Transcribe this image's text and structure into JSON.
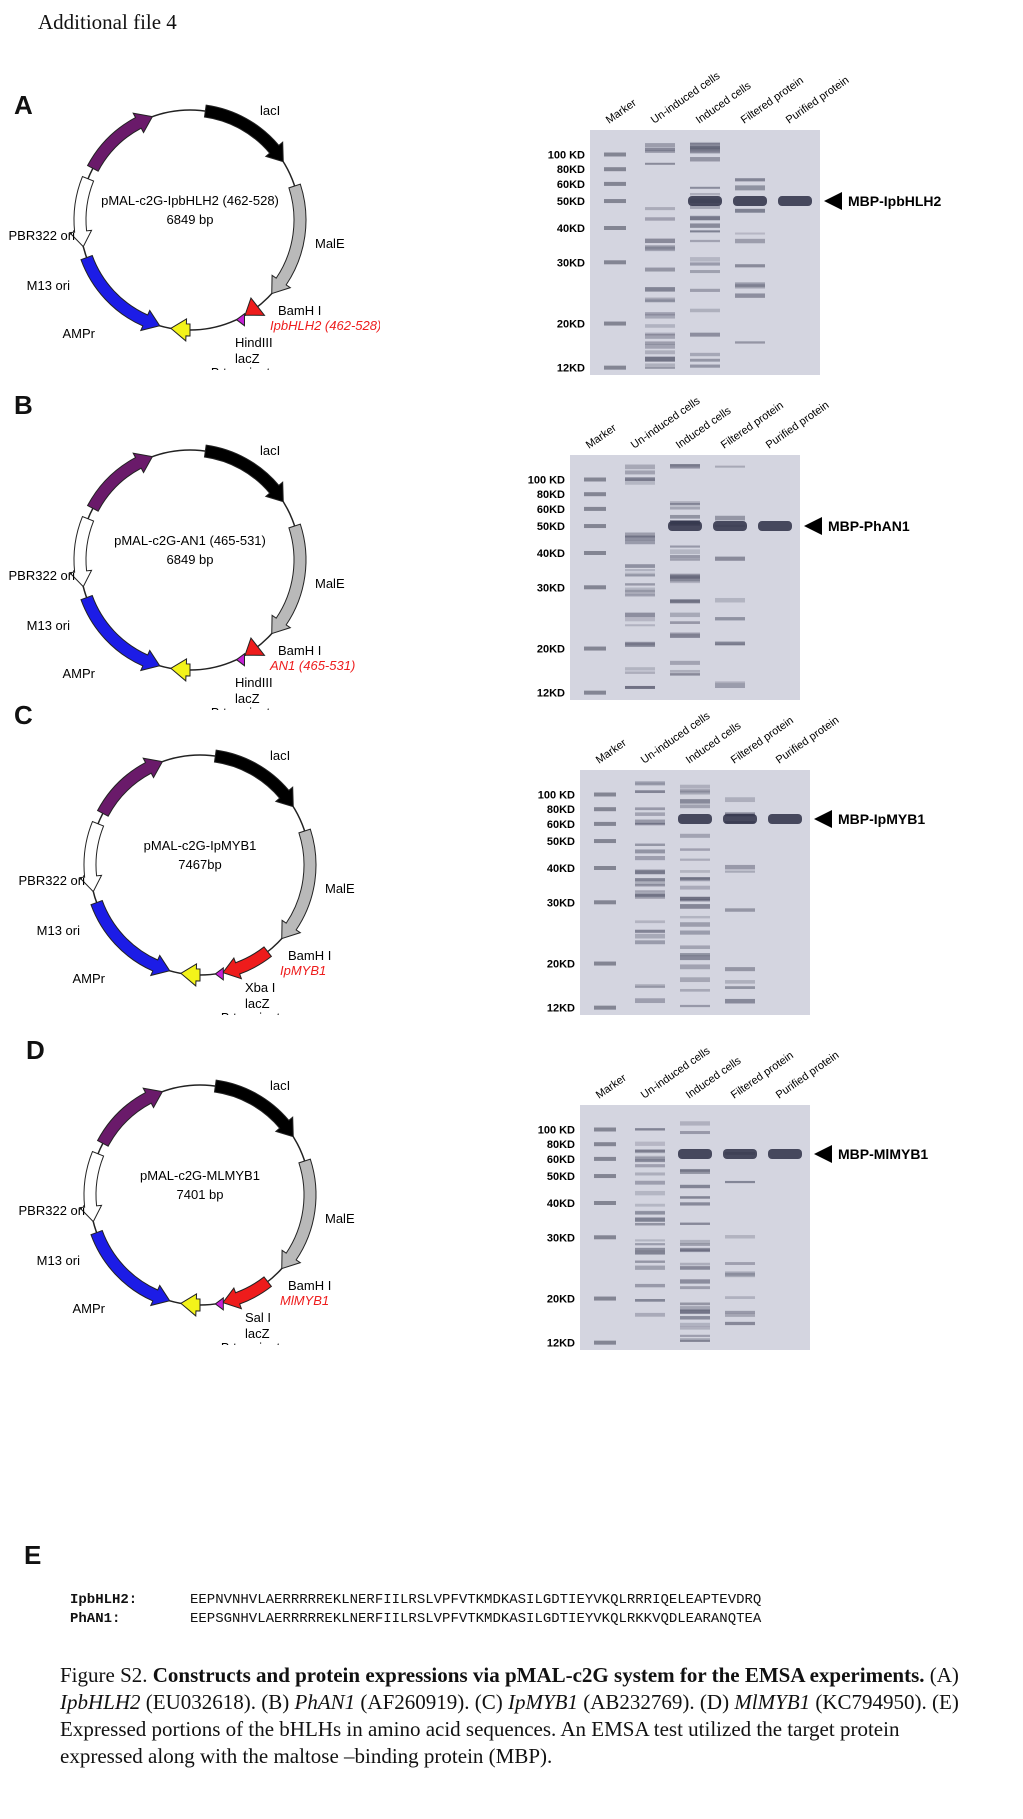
{
  "file_title": "Additional file 4",
  "panels": [
    {
      "letter": "A",
      "plasmid": {
        "name": "pMAL-c2G-IpbHLH2 (462-528)",
        "size": "6849 bp",
        "labels": {
          "lacI": "lacI",
          "malE": "MalE",
          "bamh": "BamH I",
          "insert": "IpbHLH2 (462-528)",
          "site2": "HindIII",
          "lacz": "lacZ",
          "rrnb": "rrnB terminator",
          "ampr": "AMPr",
          "m13": "M13 ori",
          "pbr": "PBR322 ori"
        }
      },
      "gel": {
        "lanes": [
          "Marker",
          "Un-induced cells",
          "Induced cells",
          "Filtered protein",
          "Purified protein"
        ],
        "markers": [
          "100 KD",
          "80KD",
          "60KD",
          "50KD",
          "40KD",
          "30KD",
          "20KD",
          "12KD"
        ],
        "protein": "MBP-IpbHLH2"
      }
    },
    {
      "letter": "B",
      "plasmid": {
        "name": "pMAL-c2G-AN1 (465-531)",
        "size": "6849 bp",
        "labels": {
          "lacI": "lacI",
          "malE": "MalE",
          "bamh": "BamH I",
          "insert": "AN1 (465-531)",
          "site2": "HindIII",
          "lacz": "lacZ",
          "rrnb": "rrnB terminator",
          "ampr": "AMPr",
          "m13": "M13 ori",
          "pbr": "PBR322 ori"
        }
      },
      "gel": {
        "lanes": [
          "Marker",
          "Un-induced cells",
          "Induced cells",
          "Filtered protein",
          "Purified protein"
        ],
        "markers": [
          "100 KD",
          "80KD",
          "60KD",
          "50KD",
          "40KD",
          "30KD",
          "20KD",
          "12KD"
        ],
        "protein": "MBP-PhAN1"
      }
    },
    {
      "letter": "C",
      "plasmid": {
        "name": "pMAL-c2G-IpMYB1",
        "size": "7467bp",
        "labels": {
          "lacI": "lacI",
          "malE": "MalE",
          "bamh": "BamH I",
          "insert": "IpMYB1",
          "site2": "Xba I",
          "lacz": "lacZ",
          "rrnb": "rrnB terminator",
          "ampr": "AMPr",
          "m13": "M13 ori",
          "pbr": "PBR322 ori"
        }
      },
      "gel": {
        "lanes": [
          "Marker",
          "Un-induced cells",
          "Induced cells",
          "Filtered protein",
          "Purified protein"
        ],
        "markers": [
          "100 KD",
          "80KD",
          "60KD",
          "50KD",
          "40KD",
          "30KD",
          "20KD",
          "12KD"
        ],
        "protein": "MBP-IpMYB1"
      }
    },
    {
      "letter": "D",
      "plasmid": {
        "name": "pMAL-c2G-MLMYB1",
        "size": "7401 bp",
        "labels": {
          "lacI": "lacI",
          "malE": "MalE",
          "bamh": "BamH I",
          "insert": "MlMYB1",
          "site2": "Sal I",
          "lacz": "lacZ",
          "rrnb": "rrnB terminator",
          "ampr": "AMPr",
          "m13": "M13 ori",
          "pbr": "PBR322 ori"
        }
      },
      "gel": {
        "lanes": [
          "Marker",
          "Un-induced cells",
          "Induced cells",
          "Filtered protein",
          "Purified protein"
        ],
        "markers": [
          "100 KD",
          "80KD",
          "60KD",
          "50KD",
          "40KD",
          "30KD",
          "20KD",
          "12KD"
        ],
        "protein": "MBP-MlMYB1"
      }
    }
  ],
  "panel_e": {
    "letter": "E",
    "rows": [
      {
        "name": "IpbHLH2:",
        "seq": "EEPNVNHVLAERRRRREKLNERFIILRSLVPFVTKMDKASILGDTIEYVKQLRRRIQELEAPTEVDRQ"
      },
      {
        "name": "PhAN1:",
        "seq": "EEPSGNHVLAERRRRREKLNERFIILRSLVPFVTKMDKASILGDTIEYVKQLRKKVQDLEARANQTEA"
      }
    ]
  },
  "caption": {
    "lead": "Figure S2. ",
    "bold": "Constructs and protein expressions via pMAL-c2G system for the EMSA experiments.",
    "parts": [
      {
        "t": " (A) ",
        "i": false
      },
      {
        "t": "IpbHLH2",
        "i": true
      },
      {
        "t": " (EU032618). (B) ",
        "i": false
      },
      {
        "t": "PhAN1",
        "i": true
      },
      {
        "t": " (AF260919). (C) ",
        "i": false
      },
      {
        "t": "IpMYB1",
        "i": true
      },
      {
        "t": " (AB232769). (D) ",
        "i": false
      },
      {
        "t": "MlMYB1",
        "i": true
      },
      {
        "t": " (KC794950). (E) Expressed portions of the bHLHs in amino acid sequences. An EMSA test utilized the target protein expressed along with the maltose –binding protein (MBP).",
        "i": false
      }
    ]
  },
  "colors": {
    "lacI": "#000000",
    "malE": "#b9b9b9",
    "insert": "#ee1c1c",
    "lacz": "#c51fd6",
    "rrnb": "#f3f31a",
    "ampr": "#1c1ce6",
    "m13": "#ffffff",
    "pbr": "#6a1a6a",
    "gel_bg": "#d4d5e0"
  }
}
